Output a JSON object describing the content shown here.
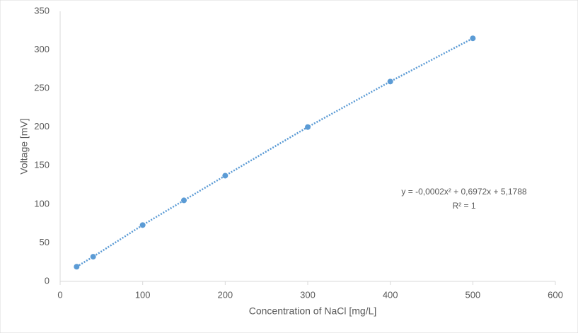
{
  "chart_data": {
    "type": "scatter",
    "x_label": "Concentration of NaCl [mg/L]",
    "y_label": "Voltage [mV]",
    "series": [
      {
        "name": "Voltage",
        "color": "#5b9bd5",
        "x": [
          20,
          40,
          100,
          150,
          200,
          300,
          400,
          500
        ],
        "values": [
          19,
          32,
          73,
          105,
          137,
          200,
          259,
          315
        ]
      }
    ],
    "trendline": true,
    "equation": "y = -0,0002x² + 0,6972x + 5,1788",
    "r_squared": "R² = 1",
    "xlim": [
      0,
      600
    ],
    "xticks": [
      0,
      100,
      200,
      300,
      400,
      500,
      600
    ],
    "ylim": [
      0,
      350
    ],
    "yticks": [
      0,
      50,
      100,
      150,
      200,
      250,
      300,
      350
    ],
    "grid": false
  }
}
